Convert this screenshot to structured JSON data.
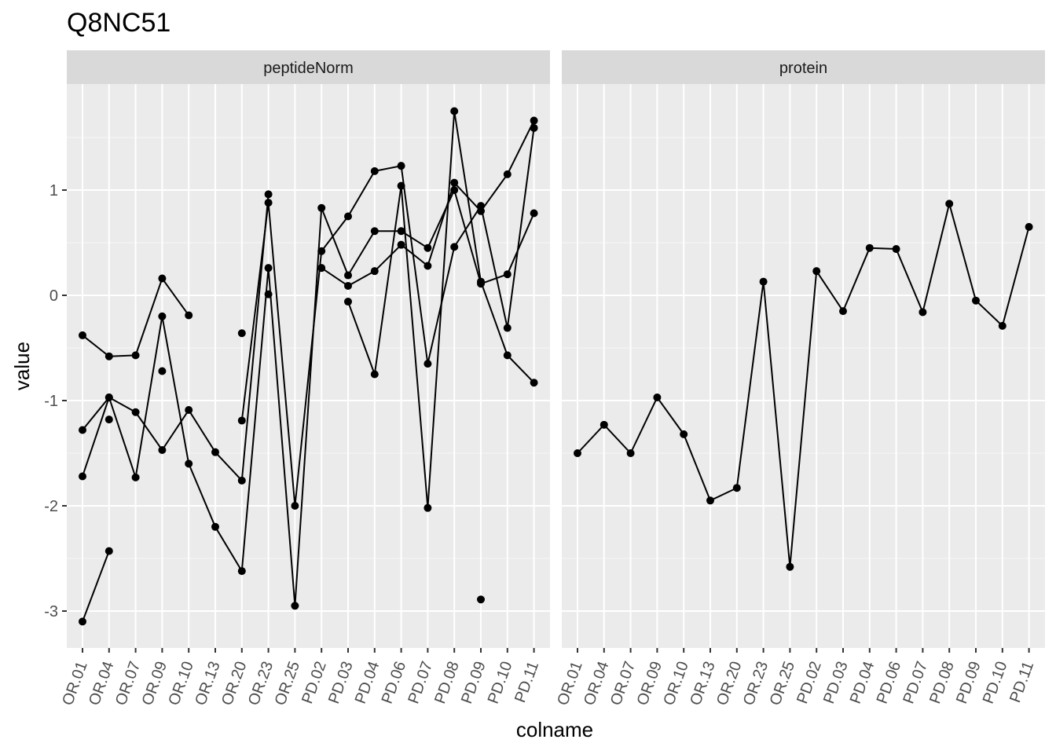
{
  "chart_data": {
    "type": "line",
    "title": "Q8NC51",
    "xlabel": "colname",
    "ylabel": "value",
    "ylim": [
      -3.35,
      1.98
    ],
    "yticks": [
      1,
      0,
      -1,
      -2,
      -3
    ],
    "ytick_labels": [
      "1",
      "0",
      "-1",
      "-2",
      "-3"
    ],
    "grid": true,
    "x": [
      "OR.01",
      "OR.04",
      "OR.07",
      "OR.09",
      "OR.10",
      "OR.13",
      "OR.20",
      "OR.23",
      "OR.25",
      "PD.02",
      "PD.03",
      "PD.04",
      "PD.06",
      "PD.07",
      "PD.08",
      "PD.09",
      "PD.10",
      "PD.11"
    ],
    "panels": [
      {
        "name": "peptideNorm",
        "series": [
          {
            "values": [
              -0.38,
              -0.58,
              -0.57,
              0.16,
              -0.19,
              null,
              -0.36,
              null,
              null,
              null,
              null,
              null,
              null,
              null,
              null,
              null,
              null,
              null
            ]
          },
          {
            "values": [
              -1.28,
              -0.97,
              -1.11,
              -1.47,
              -1.09,
              -1.49,
              -1.76,
              0.96,
              null,
              0.26,
              0.09,
              0.23,
              0.48,
              0.28,
              1.07,
              0.8,
              1.15,
              1.66
            ]
          },
          {
            "values": [
              -1.72,
              -0.97,
              -1.73,
              -0.2,
              -1.6,
              -2.2,
              -2.62,
              0.26,
              -2.95,
              0.83,
              0.19,
              0.61,
              0.61,
              0.45,
              1.0,
              0.11,
              0.2,
              0.78
            ]
          },
          {
            "values": [
              -3.1,
              -2.43,
              null,
              -0.72,
              null,
              null,
              -1.19,
              0.88,
              -2.0,
              0.42,
              0.75,
              1.18,
              1.23,
              -0.65,
              0.46,
              0.85,
              -0.31,
              1.59
            ]
          },
          {
            "values": [
              null,
              -1.18,
              null,
              null,
              null,
              null,
              null,
              0.01,
              null,
              null,
              -0.06,
              -0.75,
              1.04,
              -2.02,
              1.75,
              0.13,
              -0.57,
              -0.83
            ]
          },
          {
            "values": [
              null,
              null,
              null,
              null,
              null,
              null,
              null,
              null,
              null,
              null,
              null,
              null,
              null,
              null,
              null,
              -2.89,
              null,
              null
            ]
          }
        ]
      },
      {
        "name": "protein",
        "series": [
          {
            "values": [
              -1.5,
              -1.23,
              -1.5,
              -0.97,
              -1.32,
              -1.95,
              -1.83,
              0.13,
              -2.58,
              0.23,
              -0.15,
              0.45,
              0.44,
              -0.16,
              0.87,
              -0.05,
              -0.29,
              0.65
            ]
          }
        ]
      }
    ]
  }
}
